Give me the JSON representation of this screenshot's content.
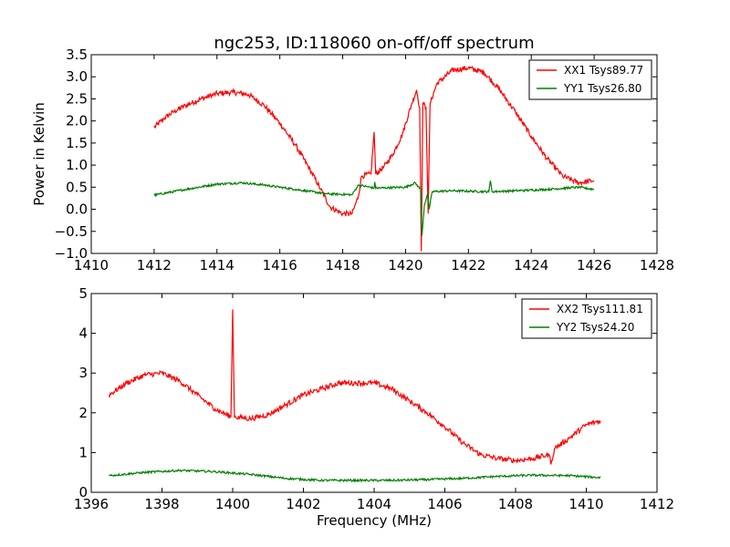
{
  "chart_data": [
    {
      "type": "line",
      "title": "ngc253, ID:118060 on-off/off spectrum",
      "xlabel": "",
      "ylabel": "Power in Kelvin",
      "xlim": [
        1410,
        1428
      ],
      "ylim": [
        -1.0,
        3.5
      ],
      "xticks": [
        1410,
        1412,
        1414,
        1416,
        1418,
        1420,
        1422,
        1424,
        1426,
        1428
      ],
      "yticks": [
        -1.0,
        -0.5,
        0.0,
        0.5,
        1.0,
        1.5,
        2.0,
        2.5,
        3.0,
        3.5
      ],
      "xtick_labels": [
        "1410",
        "1412",
        "1414",
        "1416",
        "1418",
        "1420",
        "1422",
        "1424",
        "1426",
        "1428"
      ],
      "ytick_labels": [
        "−1.0",
        "−0.5",
        "0.0",
        "0.5",
        "1.0",
        "1.5",
        "2.0",
        "2.5",
        "3.0",
        "3.5"
      ],
      "legend_position": "top-right",
      "grid": false,
      "series": [
        {
          "name": "XX1 Tsys89.77",
          "color": "#ff0000",
          "points": [
            [
              1412.0,
              1.85
            ],
            [
              1412.3,
              2.05
            ],
            [
              1412.6,
              2.2
            ],
            [
              1413.0,
              2.35
            ],
            [
              1413.5,
              2.5
            ],
            [
              1414.0,
              2.62
            ],
            [
              1414.5,
              2.65
            ],
            [
              1415.0,
              2.6
            ],
            [
              1415.5,
              2.35
            ],
            [
              1416.0,
              1.95
            ],
            [
              1416.5,
              1.45
            ],
            [
              1417.0,
              0.85
            ],
            [
              1417.3,
              0.45
            ],
            [
              1417.6,
              0.05
            ],
            [
              1418.0,
              -0.1
            ],
            [
              1418.3,
              -0.1
            ],
            [
              1418.5,
              0.3
            ],
            [
              1418.6,
              0.75
            ],
            [
              1418.9,
              0.8
            ],
            [
              1419.0,
              1.75
            ],
            [
              1419.05,
              0.8
            ],
            [
              1419.3,
              0.95
            ],
            [
              1419.6,
              1.25
            ],
            [
              1419.9,
              1.7
            ],
            [
              1420.2,
              2.4
            ],
            [
              1420.35,
              2.7
            ],
            [
              1420.45,
              2.3
            ],
            [
              1420.5,
              -0.95
            ],
            [
              1420.55,
              2.4
            ],
            [
              1420.65,
              2.3
            ],
            [
              1420.72,
              -0.1
            ],
            [
              1420.78,
              2.4
            ],
            [
              1421.0,
              2.85
            ],
            [
              1421.5,
              3.15
            ],
            [
              1422.0,
              3.2
            ],
            [
              1422.5,
              3.1
            ],
            [
              1423.0,
              2.7
            ],
            [
              1423.5,
              2.2
            ],
            [
              1424.0,
              1.65
            ],
            [
              1424.5,
              1.15
            ],
            [
              1425.0,
              0.75
            ],
            [
              1425.5,
              0.6
            ],
            [
              1426.0,
              0.65
            ]
          ]
        },
        {
          "name": "YY1 Tsys26.80",
          "color": "#008000",
          "points": [
            [
              1412.0,
              0.32
            ],
            [
              1413.0,
              0.45
            ],
            [
              1414.0,
              0.57
            ],
            [
              1414.8,
              0.6
            ],
            [
              1415.5,
              0.55
            ],
            [
              1416.5,
              0.45
            ],
            [
              1417.5,
              0.35
            ],
            [
              1418.3,
              0.33
            ],
            [
              1418.5,
              0.55
            ],
            [
              1419.0,
              0.48
            ],
            [
              1419.02,
              0.62
            ],
            [
              1419.05,
              0.48
            ],
            [
              1420.0,
              0.5
            ],
            [
              1420.3,
              0.6
            ],
            [
              1420.48,
              0.45
            ],
            [
              1420.52,
              -0.6
            ],
            [
              1420.6,
              0.1
            ],
            [
              1420.7,
              0.35
            ],
            [
              1420.75,
              0.0
            ],
            [
              1420.85,
              0.4
            ],
            [
              1421.5,
              0.42
            ],
            [
              1422.5,
              0.4
            ],
            [
              1422.65,
              0.4
            ],
            [
              1422.7,
              0.65
            ],
            [
              1422.75,
              0.4
            ],
            [
              1423.5,
              0.42
            ],
            [
              1424.5,
              0.45
            ],
            [
              1425.5,
              0.5
            ],
            [
              1426.0,
              0.45
            ]
          ]
        }
      ]
    },
    {
      "type": "line",
      "title": "",
      "xlabel": "Frequency (MHz)",
      "ylabel": "",
      "xlim": [
        1396,
        1412
      ],
      "ylim": [
        0,
        5
      ],
      "xticks": [
        1396,
        1398,
        1400,
        1402,
        1404,
        1406,
        1408,
        1410,
        1412
      ],
      "yticks": [
        0,
        1,
        2,
        3,
        4,
        5
      ],
      "xtick_labels": [
        "1396",
        "1398",
        "1400",
        "1402",
        "1404",
        "1406",
        "1408",
        "1410",
        "1412"
      ],
      "ytick_labels": [
        "0",
        "1",
        "2",
        "3",
        "4",
        "5"
      ],
      "legend_position": "top-right",
      "grid": false,
      "series": [
        {
          "name": "XX2 Tsys111.81",
          "color": "#ff0000",
          "points": [
            [
              1396.5,
              2.45
            ],
            [
              1397.0,
              2.75
            ],
            [
              1397.5,
              2.95
            ],
            [
              1398.0,
              3.0
            ],
            [
              1398.5,
              2.8
            ],
            [
              1399.0,
              2.45
            ],
            [
              1399.5,
              2.1
            ],
            [
              1399.95,
              1.9
            ],
            [
              1400.0,
              4.6
            ],
            [
              1400.05,
              1.9
            ],
            [
              1400.5,
              1.85
            ],
            [
              1401.0,
              1.95
            ],
            [
              1401.5,
              2.2
            ],
            [
              1402.0,
              2.45
            ],
            [
              1402.5,
              2.6
            ],
            [
              1403.0,
              2.75
            ],
            [
              1403.5,
              2.75
            ],
            [
              1404.0,
              2.75
            ],
            [
              1404.5,
              2.6
            ],
            [
              1405.0,
              2.3
            ],
            [
              1405.5,
              2.0
            ],
            [
              1406.0,
              1.65
            ],
            [
              1406.5,
              1.25
            ],
            [
              1407.0,
              0.95
            ],
            [
              1407.5,
              0.85
            ],
            [
              1408.0,
              0.8
            ],
            [
              1408.5,
              0.85
            ],
            [
              1408.95,
              0.95
            ],
            [
              1409.0,
              0.7
            ],
            [
              1409.1,
              1.1
            ],
            [
              1409.5,
              1.35
            ],
            [
              1410.0,
              1.7
            ],
            [
              1410.4,
              1.8
            ]
          ]
        },
        {
          "name": "YY2 Tsys24.20",
          "color": "#008000",
          "points": [
            [
              1396.5,
              0.42
            ],
            [
              1397.5,
              0.5
            ],
            [
              1398.5,
              0.55
            ],
            [
              1399.5,
              0.52
            ],
            [
              1400.5,
              0.45
            ],
            [
              1401.5,
              0.35
            ],
            [
              1402.5,
              0.3
            ],
            [
              1403.5,
              0.3
            ],
            [
              1404.5,
              0.3
            ],
            [
              1405.5,
              0.32
            ],
            [
              1406.5,
              0.35
            ],
            [
              1407.5,
              0.4
            ],
            [
              1408.5,
              0.43
            ],
            [
              1409.5,
              0.42
            ],
            [
              1410.4,
              0.37
            ]
          ]
        }
      ]
    }
  ]
}
